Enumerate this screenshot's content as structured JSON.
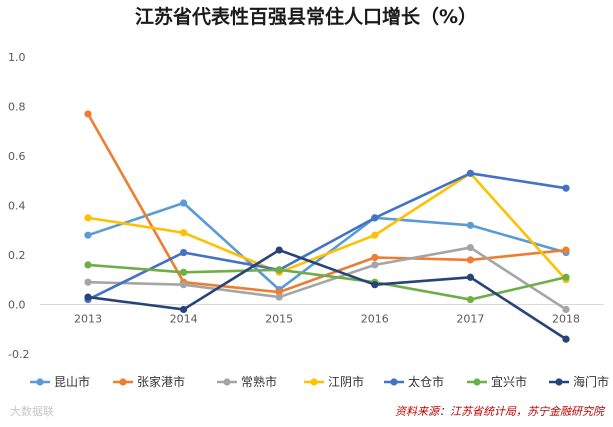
{
  "chart_data": {
    "type": "line",
    "title": "江苏省代表性百强县常住人口增长（%）",
    "xlabel": "",
    "ylabel": "",
    "categories": [
      "2013",
      "2014",
      "2015",
      "2016",
      "2017",
      "2018"
    ],
    "ylim": [
      -0.2,
      1.0
    ],
    "yticks": [
      "-0.2",
      "0.0",
      "0.2",
      "0.4",
      "0.6",
      "0.8",
      "1.0"
    ],
    "grid": false,
    "legend_position": "bottom",
    "series": [
      {
        "name": "昆山市",
        "color": "#5b9bd5",
        "values": [
          0.28,
          0.41,
          0.06,
          0.35,
          0.32,
          0.21
        ]
      },
      {
        "name": "张家港市",
        "color": "#ed7d31",
        "values": [
          0.77,
          0.09,
          0.05,
          0.19,
          0.18,
          0.22
        ]
      },
      {
        "name": "常熟市",
        "color": "#a5a5a5",
        "values": [
          0.09,
          0.08,
          0.03,
          0.16,
          0.23,
          -0.02
        ]
      },
      {
        "name": "江阴市",
        "color": "#ffc000",
        "values": [
          0.35,
          0.29,
          0.13,
          0.28,
          0.53,
          0.1
        ]
      },
      {
        "name": "太仓市",
        "color": "#4472c4",
        "values": [
          0.02,
          0.21,
          0.14,
          0.35,
          0.53,
          0.47
        ]
      },
      {
        "name": "宜兴市",
        "color": "#70ad47",
        "values": [
          0.16,
          0.13,
          0.14,
          0.09,
          0.02,
          0.11
        ]
      },
      {
        "name": "海门市",
        "color": "#264478",
        "values": [
          0.03,
          -0.02,
          0.22,
          0.08,
          0.11,
          -0.14
        ]
      }
    ]
  },
  "source_note": "资料来源：江苏省统计局，苏宁金融研究院",
  "watermark": "大数据联"
}
